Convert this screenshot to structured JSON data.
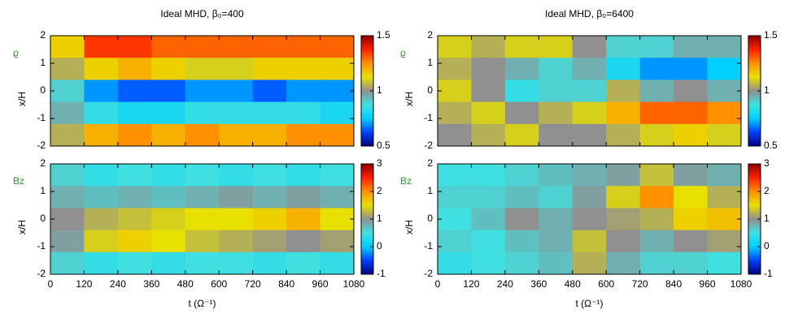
{
  "chart_data": [
    {
      "type": "heatmap",
      "title": "Ideal MHD, β₀=400",
      "label": "ϱ",
      "ylabel": "x/H",
      "xlim": [
        0,
        1080
      ],
      "xticks": [
        0,
        120,
        240,
        360,
        480,
        600,
        720,
        840,
        960,
        1080
      ],
      "ylim": [
        -2,
        2
      ],
      "yticks": [
        -2,
        -1,
        0,
        1,
        2
      ],
      "clim": [
        0.5,
        1.5
      ],
      "cticks": [
        0.5,
        1,
        1.5
      ],
      "colormap": [
        "#000080",
        "#0040ff",
        "#00d0ff",
        "#40e0e0",
        "#909090",
        "#e8e000",
        "#ff9000",
        "#ff2000",
        "#900000"
      ],
      "values": [
        [
          1.15,
          1.35,
          1.35,
          1.3,
          1.3,
          1.3,
          1.3,
          1.3,
          1.3
        ],
        [
          1.05,
          1.15,
          1.2,
          1.15,
          1.1,
          1.1,
          1.15,
          1.15,
          1.15
        ],
        [
          0.9,
          0.7,
          0.65,
          0.65,
          0.7,
          0.7,
          0.65,
          0.7,
          0.7
        ],
        [
          0.95,
          0.85,
          0.8,
          0.8,
          0.85,
          0.85,
          0.85,
          0.85,
          0.8
        ],
        [
          1.05,
          1.2,
          1.25,
          1.2,
          1.25,
          1.2,
          1.2,
          1.25,
          1.25
        ]
      ]
    },
    {
      "type": "heatmap",
      "title": "Ideal MHD, β₀=6400",
      "label": "ϱ",
      "ylabel": "x/H",
      "xlim": [
        0,
        1080
      ],
      "xticks": [
        0,
        120,
        240,
        360,
        480,
        600,
        720,
        840,
        960,
        1080
      ],
      "ylim": [
        -2,
        2
      ],
      "yticks": [
        -2,
        -1,
        0,
        1,
        2
      ],
      "clim": [
        0.5,
        1.5
      ],
      "cticks": [
        0.5,
        1,
        1.5
      ],
      "colormap": [
        "#000080",
        "#0040ff",
        "#00d0ff",
        "#40e0e0",
        "#909090",
        "#e8e000",
        "#ff9000",
        "#ff2000",
        "#900000"
      ],
      "values": [
        [
          1.1,
          1.05,
          1.1,
          1.1,
          1.0,
          0.9,
          0.9,
          0.95,
          0.95
        ],
        [
          1.05,
          1.0,
          0.95,
          0.9,
          0.95,
          0.8,
          0.7,
          0.7,
          0.75
        ],
        [
          1.1,
          1.0,
          0.85,
          0.9,
          0.9,
          1.05,
          0.95,
          1.0,
          0.95
        ],
        [
          1.05,
          1.1,
          1.0,
          1.05,
          1.1,
          1.2,
          1.3,
          1.3,
          1.25
        ],
        [
          1.0,
          1.05,
          1.1,
          1.0,
          1.0,
          1.05,
          1.1,
          1.15,
          1.1
        ]
      ]
    },
    {
      "type": "heatmap",
      "label": "Bz",
      "ylabel": "x/H",
      "xlabel": "t (Ω⁻¹)",
      "xlim": [
        0,
        1080
      ],
      "xticks": [
        0,
        120,
        240,
        360,
        480,
        600,
        720,
        840,
        960,
        1080
      ],
      "ylim": [
        -2,
        2
      ],
      "yticks": [
        -2,
        -1,
        0,
        1,
        2
      ],
      "clim": [
        -1,
        3
      ],
      "cticks": [
        -1,
        0,
        1,
        2,
        3
      ],
      "colormap": [
        "#000080",
        "#0040ff",
        "#00d0ff",
        "#40e0e0",
        "#909090",
        "#e8e000",
        "#ff9000",
        "#ff2000",
        "#900000"
      ],
      "values": [
        [
          0.6,
          0.4,
          0.5,
          0.4,
          0.5,
          0.4,
          0.5,
          0.4,
          0.5
        ],
        [
          0.8,
          0.7,
          0.8,
          0.7,
          0.8,
          0.9,
          0.8,
          0.9,
          0.8
        ],
        [
          1.0,
          1.2,
          1.3,
          1.4,
          1.5,
          1.5,
          1.6,
          1.8,
          1.5
        ],
        [
          0.9,
          1.4,
          1.6,
          1.5,
          1.3,
          1.2,
          1.1,
          1.0,
          1.1
        ],
        [
          0.6,
          0.4,
          0.5,
          0.4,
          0.5,
          0.5,
          0.4,
          0.5,
          0.4
        ]
      ]
    },
    {
      "type": "heatmap",
      "label": "Bz",
      "ylabel": "x/H",
      "xlabel": "t (Ω⁻¹)",
      "xlim": [
        0,
        1080
      ],
      "xticks": [
        0,
        120,
        240,
        360,
        480,
        600,
        720,
        840,
        960,
        1080
      ],
      "ylim": [
        -2,
        2
      ],
      "yticks": [
        -2,
        -1,
        0,
        1,
        2
      ],
      "clim": [
        -1,
        3
      ],
      "cticks": [
        -1,
        0,
        1,
        2,
        3
      ],
      "colormap": [
        "#000080",
        "#0040ff",
        "#00d0ff",
        "#40e0e0",
        "#909090",
        "#e8e000",
        "#ff9000",
        "#ff2000",
        "#900000"
      ],
      "values": [
        [
          0.5,
          0.5,
          0.6,
          0.7,
          0.8,
          0.9,
          1.3,
          0.9,
          0.8
        ],
        [
          0.6,
          0.6,
          0.7,
          0.6,
          0.9,
          1.4,
          2.0,
          1.5,
          1.2
        ],
        [
          0.5,
          0.7,
          1.0,
          0.8,
          1.0,
          1.1,
          1.2,
          1.6,
          1.7
        ],
        [
          0.6,
          0.5,
          0.7,
          0.8,
          1.3,
          1.0,
          0.8,
          1.0,
          1.1
        ],
        [
          0.4,
          0.5,
          0.6,
          0.7,
          1.2,
          0.8,
          0.6,
          0.6,
          0.5
        ]
      ]
    }
  ]
}
